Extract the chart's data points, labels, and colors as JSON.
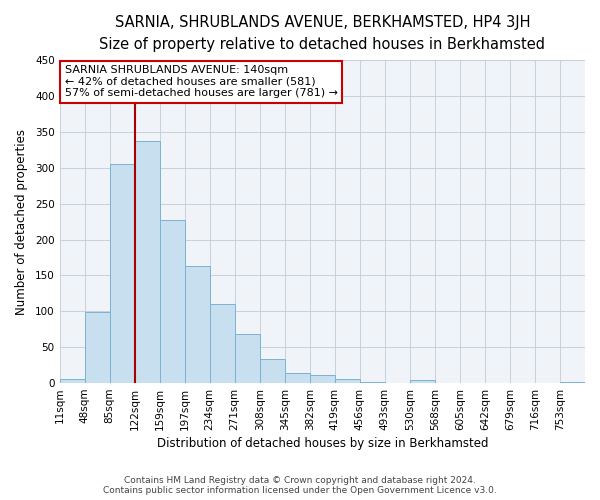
{
  "title": "SARNIA, SHRUBLANDS AVENUE, BERKHAMSTED, HP4 3JH",
  "subtitle": "Size of property relative to detached houses in Berkhamsted",
  "xlabel": "Distribution of detached houses by size in Berkhamsted",
  "ylabel": "Number of detached properties",
  "bin_labels": [
    "11sqm",
    "48sqm",
    "85sqm",
    "122sqm",
    "159sqm",
    "197sqm",
    "234sqm",
    "271sqm",
    "308sqm",
    "345sqm",
    "382sqm",
    "419sqm",
    "456sqm",
    "493sqm",
    "530sqm",
    "568sqm",
    "605sqm",
    "642sqm",
    "679sqm",
    "716sqm",
    "753sqm"
  ],
  "bar_values": [
    5,
    99,
    305,
    338,
    228,
    163,
    110,
    69,
    34,
    14,
    11,
    5,
    2,
    0,
    4,
    0,
    0,
    0,
    0,
    0,
    2
  ],
  "bar_color": "#c8dff0",
  "bar_edge_color": "#7ab3d4",
  "vline_x_idx": 3,
  "vline_color": "#aa0000",
  "annotation_title": "SARNIA SHRUBLANDS AVENUE: 140sqm",
  "annotation_line1": "← 42% of detached houses are smaller (581)",
  "annotation_line2": "57% of semi-detached houses are larger (781) →",
  "ylim": [
    0,
    450
  ],
  "yticks": [
    0,
    50,
    100,
    150,
    200,
    250,
    300,
    350,
    400,
    450
  ],
  "footer_line1": "Contains HM Land Registry data © Crown copyright and database right 2024.",
  "footer_line2": "Contains public sector information licensed under the Open Government Licence v3.0.",
  "title_fontsize": 10.5,
  "subtitle_fontsize": 9.5,
  "xlabel_fontsize": 8.5,
  "ylabel_fontsize": 8.5,
  "tick_fontsize": 7.5,
  "footer_fontsize": 6.5
}
